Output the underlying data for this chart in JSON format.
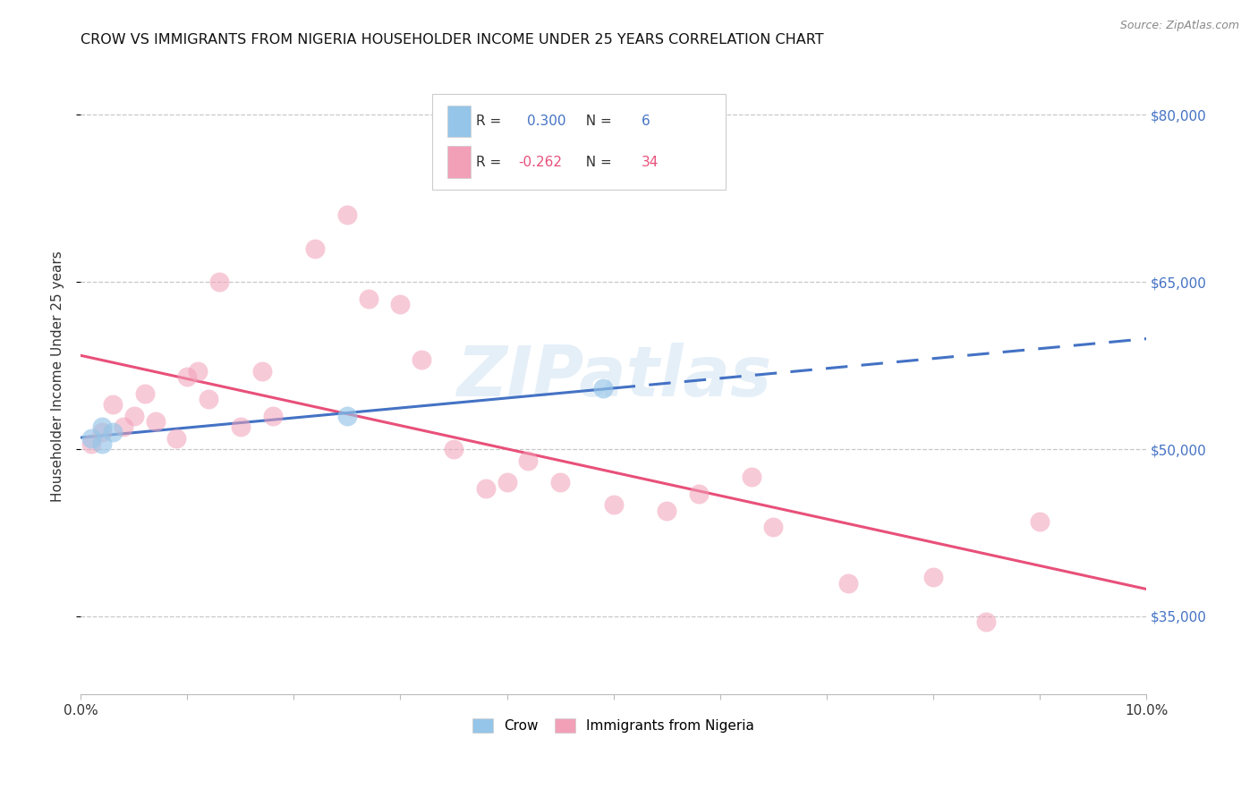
{
  "title": "CROW VS IMMIGRANTS FROM NIGERIA HOUSEHOLDER INCOME UNDER 25 YEARS CORRELATION CHART",
  "source": "Source: ZipAtlas.com",
  "ylabel": "Householder Income Under 25 years",
  "xlim": [
    0.0,
    0.1
  ],
  "ylim": [
    28000,
    85000
  ],
  "yticks": [
    35000,
    50000,
    65000,
    80000
  ],
  "ytick_labels": [
    "$35,000",
    "$50,000",
    "$65,000",
    "$80,000"
  ],
  "color_crow": "#95C5E8",
  "color_nigeria": "#F2A0B8",
  "color_trendline_crow": "#4472C4",
  "color_trendline_nigeria": "#E8507A",
  "background_color": "#FFFFFF",
  "crow_x": [
    0.001,
    0.002,
    0.002,
    0.003,
    0.025,
    0.049
  ],
  "crow_y": [
    51000,
    52000,
    50500,
    51500,
    53000,
    55500
  ],
  "nigeria_x": [
    0.001,
    0.002,
    0.003,
    0.004,
    0.005,
    0.006,
    0.007,
    0.009,
    0.01,
    0.011,
    0.012,
    0.013,
    0.015,
    0.017,
    0.018,
    0.022,
    0.025,
    0.027,
    0.03,
    0.032,
    0.035,
    0.038,
    0.04,
    0.042,
    0.045,
    0.05,
    0.055,
    0.058,
    0.063,
    0.065,
    0.072,
    0.08,
    0.085,
    0.09
  ],
  "nigeria_y": [
    50500,
    51500,
    54000,
    52000,
    53000,
    55000,
    52500,
    51000,
    56500,
    57000,
    54500,
    65000,
    52000,
    57000,
    53000,
    68000,
    71000,
    63500,
    63000,
    58000,
    50000,
    46500,
    47000,
    49000,
    47000,
    45000,
    44500,
    46000,
    47500,
    43000,
    38000,
    38500,
    34500,
    43500
  ],
  "watermark": "ZIPatlas"
}
